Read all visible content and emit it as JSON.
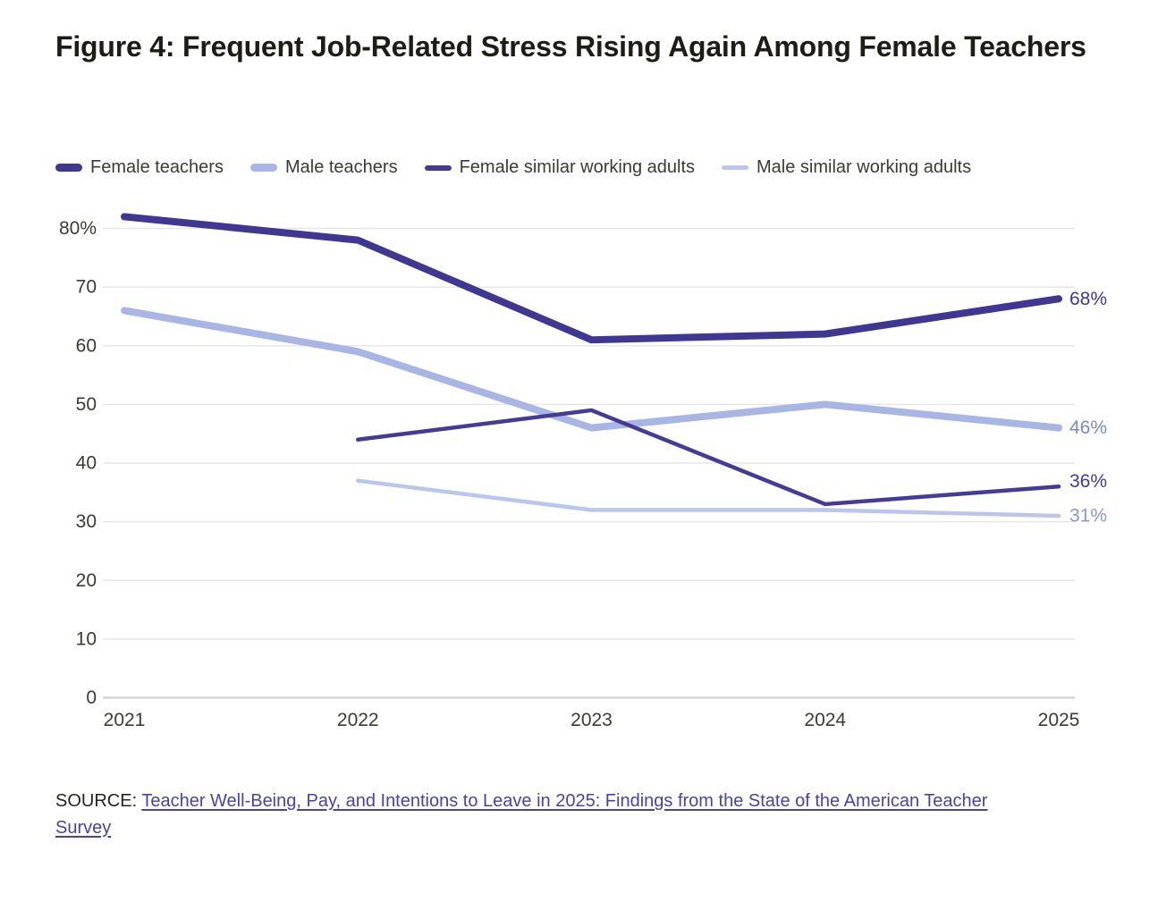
{
  "title": {
    "prefix": "Figure 4:",
    "text": "Frequent Job-Related Stress Rising Again Among Female Teachers"
  },
  "chart_data": {
    "type": "line",
    "x": [
      2021,
      2022,
      2023,
      2024,
      2025
    ],
    "series": [
      {
        "name": "Female teachers",
        "values": [
          82,
          78,
          61,
          62,
          68
        ],
        "color": "#3f3792",
        "width": 8,
        "swatch_height": 9,
        "z": 4,
        "end_label": "68%",
        "end_label_color": "#3f3792",
        "label_dy": 0
      },
      {
        "name": "Male teachers",
        "values": [
          66,
          59,
          46,
          50,
          46
        ],
        "color": "#a9b5e5",
        "width": 8,
        "swatch_height": 9,
        "z": 2,
        "end_label": "46%",
        "end_label_color": "#7e89c4",
        "label_dy": 0
      },
      {
        "name": "Female similar working adults",
        "values": [
          null,
          44,
          49,
          33,
          36
        ],
        "color": "#453b97",
        "width": 4.5,
        "swatch_height": 6,
        "z": 3,
        "end_label": "36%",
        "end_label_color": "#413a92",
        "label_dy": -6
      },
      {
        "name": "Male similar working adults",
        "values": [
          null,
          37,
          32,
          32,
          31
        ],
        "color": "#bcc6ed",
        "width": 4.5,
        "swatch_height": 5,
        "z": 1,
        "end_label": "31%",
        "end_label_color": "#8b96cc",
        "label_dy": 0
      }
    ],
    "ylim": [
      0,
      80
    ],
    "ytick_step": 10,
    "ytick_top_suffix": "%",
    "grid": true,
    "legend_position": "top",
    "xlabel": "",
    "ylabel": ""
  },
  "source": {
    "label": "SOURCE:",
    "link_text": "Teacher Well-Being, Pay, and Intentions to Leave in 2025: Findings from the State of the American Teacher Survey"
  }
}
